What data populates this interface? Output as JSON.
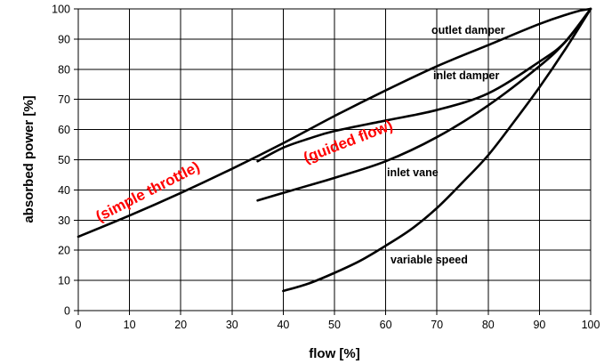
{
  "chart_data": {
    "type": "line",
    "xlabel": "flow [%]",
    "ylabel": "absorbed power [%]",
    "xlim": [
      0,
      100
    ],
    "ylim": [
      0,
      100
    ],
    "xticks": [
      0,
      10,
      20,
      30,
      40,
      50,
      60,
      70,
      80,
      90,
      100
    ],
    "yticks": [
      0,
      10,
      20,
      30,
      40,
      50,
      60,
      70,
      80,
      90,
      100
    ],
    "grid": true,
    "line_color": "#000000",
    "series": [
      {
        "name": "outlet damper",
        "x": [
          0,
          10,
          20,
          30,
          40,
          50,
          60,
          70,
          80,
          90,
          97,
          100
        ],
        "y": [
          24.5,
          31.5,
          39,
          47,
          55.5,
          64.5,
          73,
          81,
          88,
          95,
          99,
          100
        ]
      },
      {
        "name": "inlet damper",
        "x": [
          35,
          40,
          45,
          50,
          60,
          70,
          80,
          90,
          95,
          100
        ],
        "y": [
          49.5,
          54,
          57,
          59.5,
          63,
          66.5,
          72,
          82.5,
          89,
          100
        ]
      },
      {
        "name": "inlet vane",
        "x": [
          35,
          40,
          45,
          50,
          60,
          70,
          80,
          90,
          95,
          100
        ],
        "y": [
          36.5,
          39,
          41.5,
          44,
          49.5,
          57.5,
          68,
          81,
          89,
          100
        ]
      },
      {
        "name": "variable speed",
        "x": [
          40,
          45,
          50,
          55,
          60,
          65,
          70,
          75,
          80,
          85,
          90,
          95,
          100
        ],
        "y": [
          6.5,
          9,
          12.5,
          16.5,
          21.5,
          27,
          34,
          42.5,
          51.5,
          62.5,
          74,
          86.5,
          100
        ]
      }
    ],
    "annotations": [
      {
        "text": "(simple throttle)",
        "color": "#ff0000",
        "x": 14,
        "y": 38,
        "rotation": -27
      },
      {
        "text": "(guided flow)",
        "color": "#ff0000",
        "x": 53,
        "y": 54.5,
        "rotation": -21
      }
    ]
  }
}
